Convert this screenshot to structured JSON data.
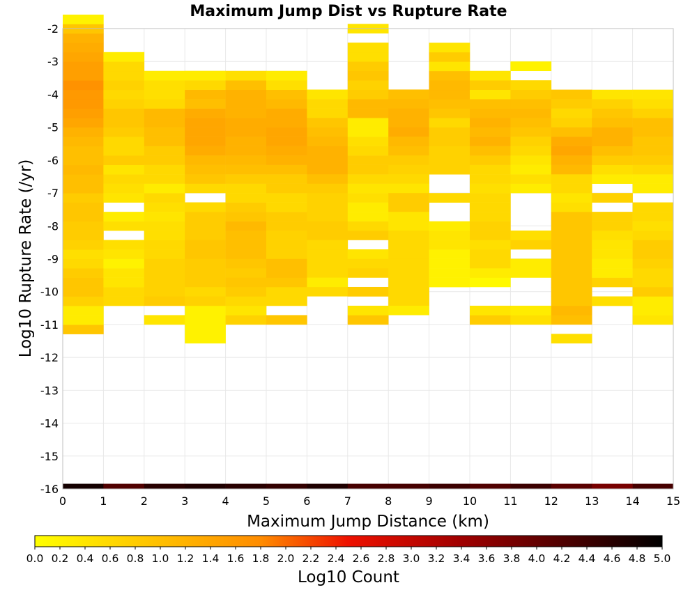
{
  "chart_data": {
    "type": "heatmap",
    "title": "Maximum Jump Dist vs Rupture Rate",
    "xlabel": "Maximum Jump Distance (km)",
    "ylabel": "Log10 Rupture Rate (/yr)",
    "xlim": [
      0,
      15
    ],
    "ylim": [
      -16,
      -2
    ],
    "x_ticks": [
      0,
      1,
      2,
      3,
      4,
      5,
      6,
      7,
      8,
      9,
      10,
      11,
      12,
      13,
      14,
      15
    ],
    "y_ticks": [
      -2,
      -3,
      -4,
      -5,
      -6,
      -7,
      -8,
      -9,
      -10,
      -11,
      -12,
      -13,
      -14,
      -15,
      -16
    ],
    "x_bin_width": 1,
    "y_bin_height": 0.2857,
    "grid": true,
    "colorbar": {
      "label": "Log10 Count",
      "range": [
        0.0,
        5.0
      ],
      "ticks": [
        "0.0",
        "0.2",
        "0.4",
        "0.6",
        "0.8",
        "1.0",
        "1.2",
        "1.4",
        "1.6",
        "1.8",
        "2.0",
        "2.2",
        "2.4",
        "2.6",
        "2.8",
        "3.0",
        "3.2",
        "3.4",
        "3.6",
        "3.8",
        "4.0",
        "4.2",
        "4.4",
        "4.6",
        "4.8",
        "5.0"
      ],
      "colors": [
        "#ffff00",
        "#ff8c00",
        "#ee1100",
        "#a00000",
        "#000000"
      ]
    },
    "columns": [
      {
        "x": 0,
        "bottom_y": -11.29,
        "values": [
          0.9,
          0.3,
          0.3,
          0.7,
          0.9,
          0.9,
          0.8,
          0.6,
          0.5,
          0.7,
          0.8,
          0.8,
          0.9,
          0.9,
          0.8,
          1.0,
          1.0,
          1.1,
          1.0,
          1.0,
          1.1,
          1.2,
          1.4,
          1.5,
          1.6,
          1.6,
          1.7,
          1.5,
          1.5,
          1.4,
          1.3,
          1.2,
          0.9,
          0.2
        ]
      },
      {
        "x": 1,
        "bottom_y": -10.43,
        "values": [
          0.6,
          0.6,
          0.4,
          0.4,
          0.2,
          0.4,
          0.5,
          null,
          0.5,
          0.3,
          null,
          0.4,
          0.5,
          0.6,
          0.4,
          0.8,
          0.6,
          0.6,
          0.8,
          0.9,
          0.9,
          0.7,
          0.6,
          0.7,
          0.6,
          0.6,
          0.3
        ]
      },
      {
        "x": 2,
        "bottom_y": -11.0,
        "values": [
          0.4,
          null,
          0.8,
          0.7,
          0.7,
          0.7,
          0.7,
          0.6,
          0.6,
          0.5,
          0.5,
          0.4,
          0.5,
          0.6,
          0.3,
          0.6,
          0.6,
          0.8,
          0.8,
          1.0,
          1.0,
          1.1,
          1.1,
          0.6,
          0.5,
          0.5,
          0.3
        ]
      },
      {
        "x": 3,
        "bottom_y": -11.57,
        "values": [
          0.2,
          0.2,
          0.2,
          0.2,
          0.7,
          0.6,
          0.8,
          0.8,
          0.8,
          0.9,
          0.9,
          0.8,
          0.8,
          0.8,
          0.6,
          null,
          0.6,
          0.9,
          1.0,
          1.1,
          1.3,
          1.4,
          1.4,
          1.4,
          1.3,
          1.0,
          1.1,
          0.6,
          0.3
        ]
      },
      {
        "x": 4,
        "bottom_y": -11.0,
        "values": [
          0.7,
          0.4,
          0.6,
          0.8,
          0.9,
          0.8,
          0.9,
          1.0,
          1.0,
          1.0,
          1.1,
          0.9,
          0.8,
          0.6,
          0.6,
          0.8,
          1.0,
          1.1,
          1.2,
          1.2,
          1.3,
          1.3,
          1.2,
          1.2,
          1.2,
          1.0,
          0.5
        ]
      },
      {
        "x": 5,
        "bottom_y": -11.0,
        "values": [
          0.9,
          null,
          0.6,
          0.6,
          0.9,
          1.0,
          1.0,
          0.7,
          0.7,
          0.7,
          0.8,
          0.8,
          0.6,
          0.6,
          0.8,
          0.8,
          1.0,
          1.2,
          1.3,
          1.4,
          1.4,
          1.3,
          1.3,
          1.1,
          1.0,
          0.5,
          0.3
        ]
      },
      {
        "x": 6,
        "bottom_y": -10.14,
        "values": [
          0.6,
          0.3,
          0.6,
          0.6,
          0.6,
          0.6,
          0.8,
          0.8,
          0.7,
          0.7,
          0.7,
          0.8,
          1.0,
          1.2,
          1.2,
          1.2,
          1.1,
          1.0,
          0.9,
          0.6,
          0.6,
          0.4
        ]
      },
      {
        "x": 7,
        "bottom_y": -11.0,
        "values": [
          0.9,
          0.4,
          null,
          0.8,
          null,
          0.7,
          0.6,
          0.4,
          null,
          0.8,
          0.6,
          0.3,
          0.3,
          0.5,
          0.4,
          0.6,
          0.8,
          0.8,
          0.6,
          0.5,
          0.3,
          0.3,
          1.1,
          1.1,
          0.8,
          0.7,
          0.9,
          0.8,
          0.5,
          0.5,
          null,
          0.4
        ]
      },
      {
        "x": 8,
        "bottom_y": -10.71,
        "values": [
          0.3,
          0.6,
          0.6,
          0.6,
          0.6,
          0.6,
          0.6,
          0.6,
          0.6,
          0.4,
          0.4,
          0.8,
          0.8,
          0.4,
          0.6,
          0.7,
          0.8,
          1.0,
          1.1,
          1.3,
          1.2,
          1.2,
          1.1,
          1.0
        ]
      },
      {
        "x": 9,
        "bottom_y": -9.86,
        "values": [
          0.2,
          0.2,
          0.2,
          0.2,
          0.4,
          0.4,
          0.3,
          null,
          null,
          0.6,
          null,
          null,
          0.7,
          0.7,
          0.7,
          0.8,
          0.8,
          0.6,
          0.9,
          1.0,
          1.1,
          1.1,
          1.0,
          0.4,
          0.8,
          0.4
        ]
      },
      {
        "x": 10,
        "bottom_y": -11.0,
        "values": [
          0.8,
          0.4,
          null,
          null,
          0.1,
          0.3,
          0.6,
          0.6,
          0.5,
          0.7,
          0.7,
          0.6,
          0.6,
          0.6,
          0.5,
          0.6,
          0.6,
          0.8,
          1.0,
          1.2,
          1.1,
          1.2,
          1.1,
          1.0,
          0.4,
          0.8,
          0.4
        ]
      },
      {
        "x": 11,
        "bottom_y": -11.0,
        "values": [
          0.5,
          0.3,
          null,
          null,
          null,
          0.3,
          0.3,
          null,
          0.7,
          0.5,
          null,
          null,
          null,
          null,
          0.3,
          0.5,
          0.3,
          0.4,
          0.6,
          0.7,
          0.9,
          1.0,
          1.1,
          1.0,
          0.8,
          0.6,
          null,
          0.2
        ]
      },
      {
        "x": 12,
        "bottom_y": -11.57,
        "values": [
          0.5,
          null,
          1.0,
          1.1,
          0.9,
          0.9,
          0.9,
          0.9,
          0.9,
          0.9,
          0.9,
          0.9,
          0.9,
          0.9,
          0.5,
          0.4,
          0.6,
          0.6,
          1.1,
          1.2,
          1.4,
          1.3,
          1.0,
          0.7,
          0.6,
          0.8,
          0.9
        ]
      },
      {
        "x": 13,
        "bottom_y": -10.43,
        "values": [
          0.5,
          null,
          0.7,
          0.3,
          0.3,
          0.4,
          0.4,
          0.5,
          0.7,
          0.7,
          null,
          0.7,
          null,
          0.3,
          0.5,
          0.8,
          1.0,
          1.2,
          1.2,
          1.0,
          0.9,
          0.7,
          0.4
        ]
      },
      {
        "x": 14,
        "bottom_y": -11.0,
        "values": [
          0.4,
          0.3,
          0.3,
          0.8,
          0.6,
          0.6,
          0.7,
          0.8,
          0.8,
          0.6,
          0.5,
          0.6,
          0.6,
          null,
          0.3,
          0.3,
          0.6,
          0.8,
          0.9,
          0.9,
          1.0,
          1.0,
          0.7,
          0.5,
          0.4
        ]
      }
    ],
    "bottom_row": {
      "y": -16,
      "values": [
        4.8,
        4.2,
        4.6,
        4.7,
        4.6,
        4.5,
        4.7,
        4.3,
        4.3,
        4.4,
        4.2,
        4.4,
        4.1,
        3.8,
        4.3
      ]
    }
  }
}
